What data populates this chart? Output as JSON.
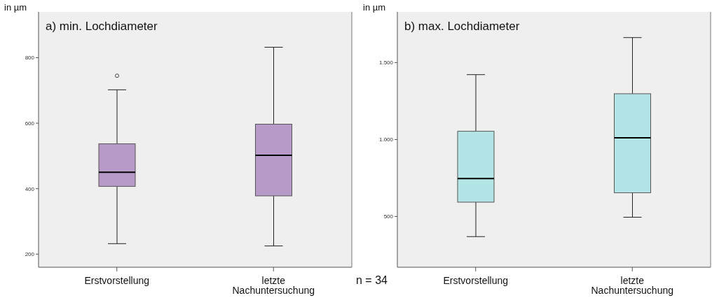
{
  "chart_data": [
    {
      "type": "box",
      "title": "a) min. Lochdiameter",
      "ylabel": "in µm",
      "categories": [
        "Erstvorstellung",
        "letzte Nachuntersuchung"
      ],
      "color": "#b89ac8",
      "ylim": [
        160,
        940
      ],
      "yticks": [
        200,
        400,
        600,
        800
      ],
      "boxes": [
        {
          "low": 232,
          "q1": 407,
          "median": 450,
          "q3": 537,
          "high": 702,
          "outliers": [
            745
          ]
        },
        {
          "low": 225,
          "q1": 378,
          "median": 502,
          "q3": 597,
          "high": 832
        }
      ]
    },
    {
      "type": "box",
      "title": "b) max. Lochdiameter",
      "ylabel": "in µm",
      "categories": [
        "Erstvorstellung",
        "letzte Nachuntersuchung"
      ],
      "color": "#b3e5e6",
      "ylim": [
        170,
        1830
      ],
      "yticks": [
        {
          "value": 500,
          "label": "500"
        },
        {
          "value": 1000,
          "label": "1.000"
        },
        {
          "value": 1500,
          "label": "1.500"
        }
      ],
      "annotations": [
        "n = 34"
      ],
      "boxes": [
        {
          "low": 369,
          "q1": 593,
          "median": 747,
          "q3": 1054,
          "high": 1422
        },
        {
          "low": 495,
          "q1": 654,
          "median": 1011,
          "q3": 1298,
          "high": 1663
        }
      ]
    }
  ]
}
